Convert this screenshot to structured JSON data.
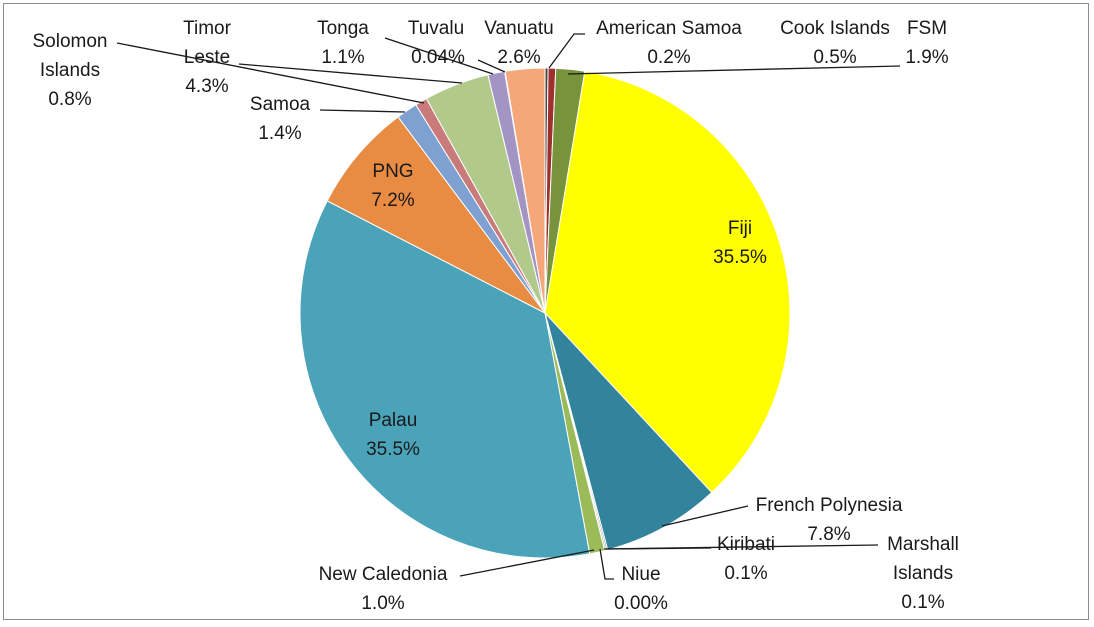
{
  "chart_data": {
    "type": "pie",
    "title": "",
    "slices": [
      {
        "label": "American Samoa",
        "pct_text": "0.2%",
        "value": 0.2,
        "color": "#4a4a4a"
      },
      {
        "label": "Cook Islands",
        "pct_text": "0.5%",
        "value": 0.5,
        "color": "#a0302e"
      },
      {
        "label": "FSM",
        "pct_text": "1.9%",
        "value": 1.9,
        "color": "#77933c"
      },
      {
        "label": "Fiji",
        "pct_text": "35.5%",
        "value": 35.5,
        "color": "#ffff00"
      },
      {
        "label": "French Polynesia",
        "pct_text": "7.8%",
        "value": 7.8,
        "color": "#31849b"
      },
      {
        "label": "Marshall Islands",
        "pct_text": "0.1%",
        "value": 0.1,
        "color": "#7f7f7f"
      },
      {
        "label": "Kiribati",
        "pct_text": "0.1%",
        "value": 0.1,
        "color": "#9b9b9b"
      },
      {
        "label": "Niue",
        "pct_text": "0.00%",
        "value": 0.0,
        "color": "#8064a2"
      },
      {
        "label": "New Caledonia",
        "pct_text": "1.0%",
        "value": 1.0,
        "color": "#9bbb59"
      },
      {
        "label": "Palau",
        "pct_text": "35.5%",
        "value": 35.5,
        "color": "#4aa3b8"
      },
      {
        "label": "PNG",
        "pct_text": "7.2%",
        "value": 7.2,
        "color": "#e88b43"
      },
      {
        "label": "Samoa",
        "pct_text": "1.4%",
        "value": 1.4,
        "color": "#7ea1d1"
      },
      {
        "label": "Solomon Islands",
        "pct_text": "0.8%",
        "value": 0.8,
        "color": "#c97a7a"
      },
      {
        "label": "Timor Leste",
        "pct_text": "4.3%",
        "value": 4.3,
        "color": "#b1c98a"
      },
      {
        "label": "Tonga",
        "pct_text": "1.1%",
        "value": 1.1,
        "color": "#a494c4"
      },
      {
        "label": "Tuvalu",
        "pct_text": "0.04%",
        "value": 0.04,
        "color": "#66c2d4"
      },
      {
        "label": "Vanuatu",
        "pct_text": "2.6%",
        "value": 2.6,
        "color": "#f5a77a"
      }
    ]
  }
}
